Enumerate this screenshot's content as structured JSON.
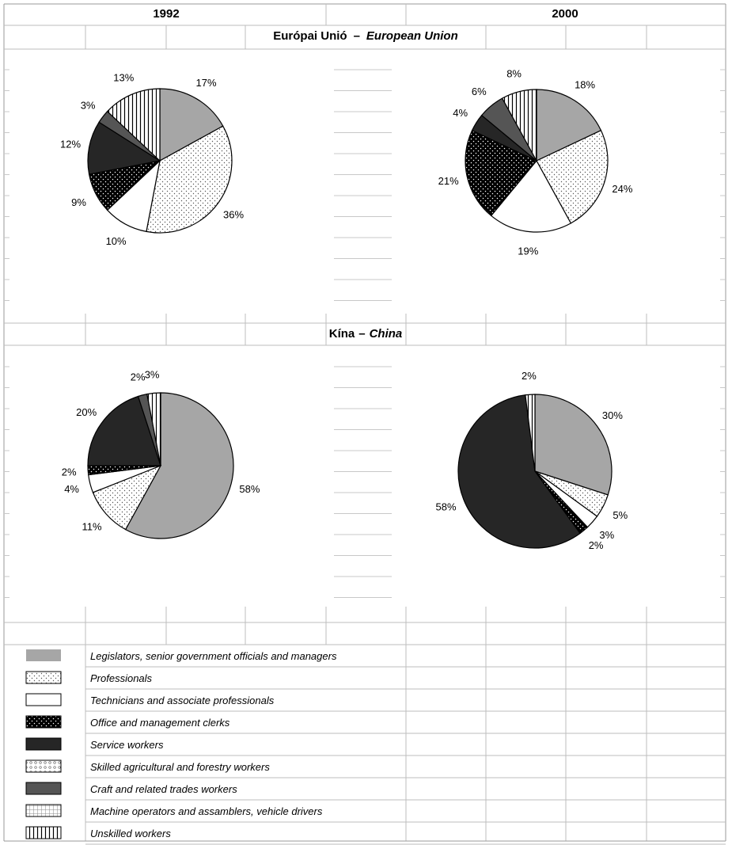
{
  "header": {
    "year_left": "1992",
    "year_right": "2000"
  },
  "sections": {
    "eu": {
      "title_hu": "Európai Unió",
      "separator": "–",
      "title_en": "European Union"
    },
    "china": {
      "title_hu": "Kína",
      "separator": "–",
      "title_en": "China"
    }
  },
  "colors": {
    "legislators": "#a6a6a6",
    "professionals": "#ffffff",
    "technicians": "#ffffff",
    "clerks": "#000000",
    "service": "#262626",
    "skilled_agri": "#ffffff",
    "craft": "#555555",
    "machine_ops": "#ffffff",
    "unskilled": "#ffffff"
  },
  "chart_data": [
    {
      "type": "pie",
      "region": "Európai Unió",
      "year": "1992",
      "slices": [
        {
          "category": "Legislators, senior government officials and managers",
          "value": 17,
          "label": "17%"
        },
        {
          "category": "Professionals",
          "value": 36,
          "label": "36%"
        },
        {
          "category": "Technicians and associate professionals",
          "value": 10,
          "label": "10%"
        },
        {
          "category": "Office and management clerks",
          "value": 9,
          "label": "9%"
        },
        {
          "category": "Service workers",
          "value": 12,
          "label": "12%"
        },
        {
          "category": "Craft and related trades workers",
          "value": 3,
          "label": "3%"
        },
        {
          "category": "Unskilled workers",
          "value": 13,
          "label": "13%"
        }
      ]
    },
    {
      "type": "pie",
      "region": "Európai Unió",
      "year": "2000",
      "slices": [
        {
          "category": "Legislators, senior government officials and managers",
          "value": 18,
          "label": "18%"
        },
        {
          "category": "Professionals",
          "value": 24,
          "label": "24%"
        },
        {
          "category": "Technicians and associate professionals",
          "value": 19,
          "label": "19%"
        },
        {
          "category": "Office and management clerks",
          "value": 21,
          "label": "21%"
        },
        {
          "category": "Service workers",
          "value": 4,
          "label": "4%"
        },
        {
          "category": "Craft and related trades workers",
          "value": 6,
          "label": "6%"
        },
        {
          "category": "Unskilled workers",
          "value": 8,
          "label": "8%"
        }
      ]
    },
    {
      "type": "pie",
      "region": "Kína",
      "year": "1992",
      "slices": [
        {
          "category": "Legislators, senior government officials and managers",
          "value": 58,
          "label": "58%"
        },
        {
          "category": "Professionals",
          "value": 11,
          "label": "11%"
        },
        {
          "category": "Technicians and associate professionals",
          "value": 4,
          "label": "4%"
        },
        {
          "category": "Office and management clerks",
          "value": 2,
          "label": "2%"
        },
        {
          "category": "Service workers",
          "value": 20,
          "label": "20%"
        },
        {
          "category": "Craft and related trades workers",
          "value": 2,
          "label": "2%"
        },
        {
          "category": "Unskilled workers",
          "value": 3,
          "label": "3%"
        }
      ]
    },
    {
      "type": "pie",
      "region": "Kína",
      "year": "2000",
      "slices": [
        {
          "category": "Legislators, senior government officials and managers",
          "value": 30,
          "label": "30%"
        },
        {
          "category": "Professionals",
          "value": 5,
          "label": "5%"
        },
        {
          "category": "Technicians and associate professionals",
          "value": 3,
          "label": "3%"
        },
        {
          "category": "Office and management clerks",
          "value": 2,
          "label": "2%"
        },
        {
          "category": "Service workers",
          "value": 58,
          "label": "58%"
        },
        {
          "category": "Unskilled workers",
          "value": 2,
          "label": "2%"
        }
      ]
    }
  ],
  "legend": [
    {
      "text": "Legislators, senior government officials and managers",
      "pattern": "legislators"
    },
    {
      "text": "Professionals",
      "pattern": "professionals"
    },
    {
      "text": "Technicians and associate professionals",
      "pattern": "technicians"
    },
    {
      "text": "Office and management clerks",
      "pattern": "clerks"
    },
    {
      "text": "Service workers",
      "pattern": "service"
    },
    {
      "text": "Skilled agricultural and forestry workers",
      "pattern": "skilled_agri"
    },
    {
      "text": "Craft and related trades workers",
      "pattern": "craft"
    },
    {
      "text": "Machine operators and assamblers, vehicle drivers",
      "pattern": "machine_ops"
    },
    {
      "text": "Unskilled workers",
      "pattern": "unskilled"
    }
  ]
}
